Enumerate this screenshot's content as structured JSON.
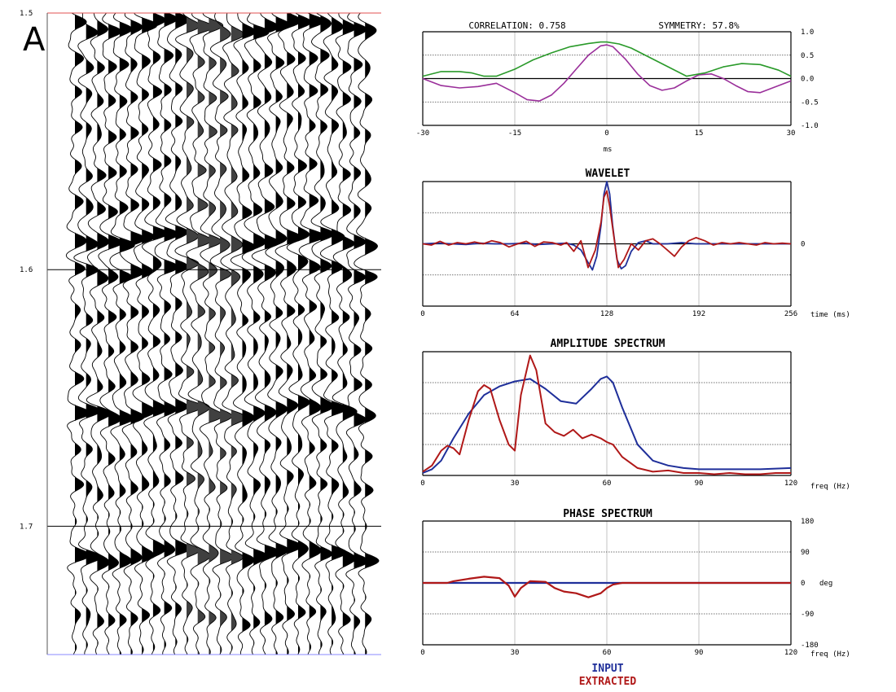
{
  "panel_letter": "A",
  "colors": {
    "input": "#1f2f9a",
    "extracted": "#b01818",
    "correlation": "#9a2f9a",
    "symmetry": "#2a9a2a",
    "time_marker": "#e05050",
    "seismic_fill": "#000000",
    "seismic_window_fill": "#404040"
  },
  "legend": {
    "input_label": "INPUT",
    "extracted_label": "EXTRACTED"
  },
  "chart_data": [
    {
      "id": "seismic",
      "type": "seismic-wiggle",
      "y_ticks": [
        "1.5",
        "1.6",
        "1.7"
      ],
      "ylim": [
        1.5,
        1.75
      ],
      "time_markers": [
        1.5,
        1.6,
        1.7
      ],
      "trace_count": 27,
      "window_traces": [
        10,
        14
      ],
      "events": [
        {
          "t": 1.505,
          "amp": 1.0
        },
        {
          "t": 1.519,
          "amp": 0.55
        },
        {
          "t": 1.532,
          "amp": 0.5
        },
        {
          "t": 1.545,
          "amp": 0.45
        },
        {
          "t": 1.561,
          "amp": 0.5
        },
        {
          "t": 1.575,
          "amp": 0.6
        },
        {
          "t": 1.588,
          "amp": 1.0
        },
        {
          "t": 1.6,
          "amp": 0.9
        },
        {
          "t": 1.617,
          "amp": 0.45
        },
        {
          "t": 1.629,
          "amp": 0.4
        },
        {
          "t": 1.642,
          "amp": 0.5
        },
        {
          "t": 1.655,
          "amp": 1.0
        },
        {
          "t": 1.67,
          "amp": 0.4
        },
        {
          "t": 1.684,
          "amp": 0.5
        },
        {
          "t": 1.711,
          "amp": 1.0
        },
        {
          "t": 1.735,
          "amp": 0.45
        }
      ]
    },
    {
      "id": "correlation",
      "type": "line",
      "title_correlation": "CORRELATION: 0.758",
      "title_symmetry": "SYMMETRY: 57.8%",
      "xlabel": "ms",
      "xlim": [
        -30,
        30
      ],
      "ylim": [
        -1.0,
        1.0
      ],
      "x_ticks": [
        "-30",
        "-15",
        "0",
        "15",
        "30"
      ],
      "y_ticks": [
        "1.0",
        "0.5",
        "0.0",
        "-0.5",
        "-1.0"
      ],
      "series": [
        {
          "color_key": "correlation",
          "x": [
            -30,
            -27,
            -24,
            -21,
            -18,
            -15,
            -13,
            -11,
            -9,
            -7,
            -5,
            -3,
            -1,
            0,
            1,
            3,
            5,
            7,
            9,
            11,
            13,
            15,
            17,
            19,
            21,
            23,
            25,
            27,
            30
          ],
          "y": [
            0.0,
            -0.15,
            -0.2,
            -0.17,
            -0.1,
            -0.3,
            -0.45,
            -0.48,
            -0.35,
            -0.1,
            0.2,
            0.5,
            0.7,
            0.72,
            0.68,
            0.42,
            0.1,
            -0.15,
            -0.25,
            -0.2,
            -0.05,
            0.08,
            0.1,
            0.0,
            -0.15,
            -0.28,
            -0.3,
            -0.2,
            -0.05
          ]
        },
        {
          "color_key": "symmetry",
          "x": [
            -30,
            -27,
            -24,
            -22,
            -20,
            -18,
            -15,
            -12,
            -9,
            -6,
            -3,
            -1,
            0,
            2,
            4,
            7,
            10,
            13,
            16,
            19,
            22,
            25,
            28,
            30
          ],
          "y": [
            0.05,
            0.15,
            0.15,
            0.12,
            0.05,
            0.05,
            0.2,
            0.4,
            0.55,
            0.68,
            0.75,
            0.78,
            0.78,
            0.74,
            0.65,
            0.45,
            0.25,
            0.05,
            0.12,
            0.25,
            0.32,
            0.3,
            0.18,
            0.05
          ]
        }
      ]
    },
    {
      "id": "wavelet",
      "type": "line",
      "title": "WAVELET",
      "xlabel": "time (ms)",
      "xlim": [
        0,
        256
      ],
      "ylim": [
        -1.0,
        1.0
      ],
      "x_ticks": [
        "0",
        "64",
        "128",
        "192",
        "256"
      ],
      "y_ticks": [
        "0"
      ],
      "series": [
        {
          "color_key": "input",
          "x": [
            0,
            10,
            20,
            30,
            40,
            50,
            60,
            70,
            80,
            90,
            100,
            105,
            110,
            115,
            118,
            121,
            124,
            126,
            128,
            130,
            132,
            135,
            138,
            141,
            145,
            150,
            155,
            160,
            170,
            180,
            190,
            200,
            210,
            220,
            230,
            240,
            250,
            256
          ],
          "y": [
            0,
            0.01,
            0.0,
            -0.01,
            0.01,
            0,
            0.0,
            0.01,
            -0.01,
            0.0,
            0.01,
            -0.02,
            -0.1,
            -0.3,
            -0.42,
            -0.2,
            0.3,
            0.8,
            1.0,
            0.8,
            0.3,
            -0.25,
            -0.4,
            -0.35,
            -0.12,
            0.02,
            0.05,
            0.0,
            0.0,
            0.02,
            0.0,
            0.0,
            0.0,
            0.0,
            0.0,
            0.0,
            0.0,
            0.0
          ]
        },
        {
          "color_key": "extracted",
          "x": [
            0,
            6,
            12,
            18,
            24,
            30,
            36,
            42,
            48,
            54,
            60,
            66,
            72,
            78,
            84,
            90,
            96,
            100,
            105,
            110,
            115,
            120,
            124,
            126,
            128,
            130,
            133,
            136,
            140,
            145,
            150,
            155,
            160,
            165,
            170,
            175,
            180,
            185,
            190,
            196,
            202,
            208,
            214,
            220,
            226,
            232,
            238,
            244,
            250,
            256
          ],
          "y": [
            0,
            -0.02,
            0.04,
            -0.02,
            0.02,
            0.0,
            0.03,
            0.0,
            0.05,
            0.02,
            -0.05,
            0.0,
            0.04,
            -0.04,
            0.03,
            0.02,
            -0.02,
            0.02,
            -0.12,
            0.05,
            -0.38,
            -0.1,
            0.35,
            0.75,
            0.85,
            0.6,
            0.1,
            -0.38,
            -0.25,
            0.0,
            -0.1,
            0.05,
            0.08,
            0.0,
            -0.1,
            -0.2,
            -0.05,
            0.05,
            0.1,
            0.05,
            -0.02,
            0.02,
            0.0,
            0.02,
            0.0,
            -0.02,
            0.02,
            0.0,
            0.01,
            0.0
          ]
        }
      ]
    },
    {
      "id": "amplitude",
      "type": "line",
      "title": "AMPLITUDE SPECTRUM",
      "xlabel": "freq (Hz)",
      "xlim": [
        0,
        120
      ],
      "ylim": [
        0,
        1.0
      ],
      "x_ticks": [
        "0",
        "30",
        "60",
        "90",
        "120"
      ],
      "y_ticks": [],
      "series": [
        {
          "color_key": "input",
          "x": [
            0,
            3,
            6,
            10,
            15,
            20,
            25,
            30,
            35,
            40,
            45,
            50,
            55,
            58,
            60,
            62,
            65,
            70,
            75,
            80,
            85,
            90,
            95,
            100,
            110,
            120
          ],
          "y": [
            0.02,
            0.05,
            0.12,
            0.3,
            0.5,
            0.65,
            0.72,
            0.76,
            0.78,
            0.7,
            0.6,
            0.58,
            0.7,
            0.78,
            0.8,
            0.75,
            0.55,
            0.25,
            0.12,
            0.08,
            0.06,
            0.05,
            0.05,
            0.05,
            0.05,
            0.06
          ]
        },
        {
          "color_key": "extracted",
          "x": [
            0,
            3,
            6,
            8,
            10,
            12,
            15,
            18,
            20,
            22,
            25,
            28,
            30,
            32,
            35,
            37,
            40,
            43,
            46,
            49,
            52,
            55,
            58,
            60,
            62,
            65,
            70,
            75,
            80,
            85,
            90,
            95,
            100,
            105,
            110,
            115,
            120
          ],
          "y": [
            0.03,
            0.08,
            0.2,
            0.24,
            0.22,
            0.17,
            0.45,
            0.68,
            0.73,
            0.7,
            0.45,
            0.25,
            0.2,
            0.65,
            0.97,
            0.85,
            0.42,
            0.35,
            0.32,
            0.37,
            0.3,
            0.33,
            0.3,
            0.27,
            0.25,
            0.15,
            0.06,
            0.03,
            0.04,
            0.02,
            0.02,
            0.01,
            0.02,
            0.01,
            0.01,
            0.02,
            0.02
          ]
        }
      ]
    },
    {
      "id": "phase",
      "type": "line",
      "title": "PHASE SPECTRUM",
      "xlabel": "freq (Hz)",
      "ylabel": "deg",
      "xlim": [
        0,
        120
      ],
      "ylim": [
        -180,
        180
      ],
      "x_ticks": [
        "0",
        "30",
        "60",
        "90",
        "120"
      ],
      "y_ticks": [
        "180",
        "90",
        "0",
        "-90",
        "-180"
      ],
      "series": [
        {
          "color_key": "input",
          "x": [
            0,
            120
          ],
          "y": [
            0,
            0
          ]
        },
        {
          "color_key": "extracted",
          "x": [
            0,
            8,
            10,
            15,
            20,
            25,
            28,
            30,
            32,
            35,
            40,
            43,
            46,
            50,
            54,
            58,
            60,
            62,
            65,
            70,
            120
          ],
          "y": [
            0,
            0,
            5,
            12,
            18,
            14,
            -8,
            -40,
            -15,
            5,
            3,
            -15,
            -25,
            -30,
            -42,
            -30,
            -15,
            -5,
            0,
            0,
            0
          ]
        }
      ]
    }
  ]
}
